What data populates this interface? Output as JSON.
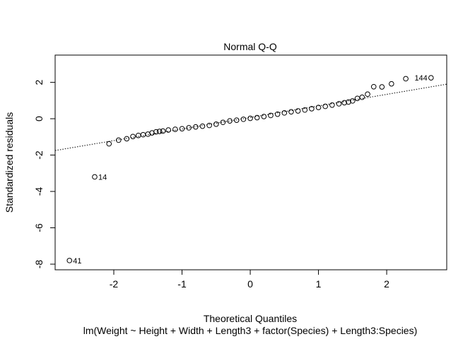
{
  "chart_data": {
    "type": "scatter",
    "title": "Normal Q-Q",
    "x_label": "Theoretical Quantiles",
    "subtitle": "lm(Weight ~ Height + Width + Length3 + factor(Species) + Length3:Species)",
    "y_label": "Standardized residuals",
    "x": [
      -2.65,
      -2.28,
      -2.07,
      -1.93,
      -1.81,
      -1.72,
      -1.64,
      -1.57,
      -1.5,
      -1.44,
      -1.38,
      -1.33,
      -1.28,
      -1.2,
      -1.1,
      -1.0,
      -0.9,
      -0.8,
      -0.7,
      -0.6,
      -0.5,
      -0.4,
      -0.3,
      -0.2,
      -0.1,
      0,
      0.1,
      0.2,
      0.3,
      0.4,
      0.5,
      0.6,
      0.7,
      0.8,
      0.9,
      1.0,
      1.1,
      1.2,
      1.3,
      1.38,
      1.44,
      1.5,
      1.57,
      1.64,
      1.72,
      1.81,
      1.93,
      2.07,
      2.28,
      2.65
    ],
    "values": [
      -7.8,
      -3.2,
      -1.38,
      -1.18,
      -1.1,
      -0.98,
      -0.92,
      -0.88,
      -0.85,
      -0.78,
      -0.72,
      -0.7,
      -0.68,
      -0.62,
      -0.58,
      -0.55,
      -0.5,
      -0.45,
      -0.41,
      -0.37,
      -0.3,
      -0.2,
      -0.12,
      -0.08,
      -0.03,
      0.02,
      0.06,
      0.12,
      0.18,
      0.25,
      0.32,
      0.38,
      0.43,
      0.48,
      0.55,
      0.62,
      0.68,
      0.75,
      0.82,
      0.88,
      0.92,
      0.98,
      1.12,
      1.18,
      1.35,
      1.76,
      1.75,
      1.92,
      2.2,
      2.25
    ],
    "point_labels": [
      "41",
      "14",
      null,
      null,
      null,
      null,
      null,
      null,
      null,
      null,
      null,
      null,
      null,
      null,
      null,
      null,
      null,
      null,
      null,
      null,
      null,
      null,
      null,
      null,
      null,
      null,
      null,
      null,
      null,
      null,
      null,
      null,
      null,
      null,
      null,
      null,
      null,
      null,
      null,
      null,
      null,
      null,
      null,
      null,
      null,
      null,
      null,
      null,
      null,
      "144"
    ],
    "ref_line": {
      "x": [
        -2.86,
        2.88
      ],
      "y": [
        -1.75,
        1.9
      ]
    },
    "color": "#000000",
    "xlim": [
      -2.86,
      2.88
    ],
    "ylim": [
      -8.31,
      3.5
    ],
    "xticks": [
      -2,
      -1,
      0,
      1,
      2
    ],
    "yticks": [
      -8,
      -6,
      -4,
      -2,
      0,
      2
    ]
  }
}
